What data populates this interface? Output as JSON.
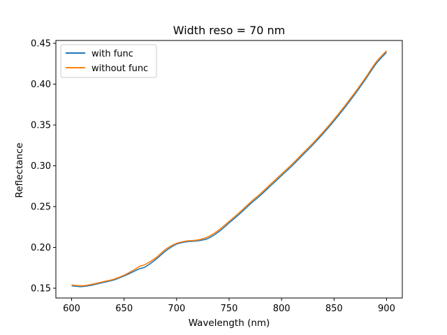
{
  "chart_data": {
    "type": "line",
    "title": "Width reso = 70 nm",
    "xlabel": "Wavelength (nm)",
    "ylabel": "Reflectance",
    "xlim": [
      585,
      915
    ],
    "ylim": [
      0.138,
      0.4535
    ],
    "xticks": [
      600,
      650,
      700,
      750,
      800,
      850,
      900
    ],
    "yticks": [
      0.15,
      0.2,
      0.25,
      0.3,
      0.35,
      0.4,
      0.45
    ],
    "ytick_labels": [
      "0.15",
      "0.20",
      "0.25",
      "0.30",
      "0.35",
      "0.40",
      "0.45"
    ],
    "grid": false,
    "legend_position": "upper-left",
    "series": [
      {
        "name": "with func",
        "color": "#1f77b4",
        "x": [
          600,
          610,
          620,
          630,
          640,
          650,
          660,
          665,
          670,
          680,
          690,
          700,
          710,
          720,
          730,
          740,
          750,
          760,
          770,
          780,
          790,
          800,
          810,
          820,
          830,
          840,
          850,
          860,
          870,
          880,
          890,
          900
        ],
        "y": [
          0.153,
          0.152,
          0.154,
          0.157,
          0.16,
          0.165,
          0.171,
          0.174,
          0.176,
          0.185,
          0.196,
          0.204,
          0.207,
          0.208,
          0.211,
          0.219,
          0.23,
          0.241,
          0.253,
          0.264,
          0.276,
          0.288,
          0.3,
          0.313,
          0.326,
          0.34,
          0.355,
          0.371,
          0.388,
          0.406,
          0.425,
          0.439
        ]
      },
      {
        "name": "without func",
        "color": "#ff7f0e",
        "x": [
          600,
          610,
          620,
          630,
          640,
          650,
          660,
          665,
          670,
          680,
          690,
          700,
          710,
          720,
          730,
          740,
          750,
          760,
          770,
          780,
          790,
          800,
          810,
          820,
          830,
          840,
          850,
          860,
          870,
          880,
          890,
          900
        ],
        "y": [
          0.154,
          0.153,
          0.155,
          0.158,
          0.161,
          0.166,
          0.173,
          0.177,
          0.179,
          0.187,
          0.198,
          0.205,
          0.208,
          0.209,
          0.213,
          0.221,
          0.232,
          0.243,
          0.255,
          0.266,
          0.278,
          0.29,
          0.302,
          0.315,
          0.328,
          0.342,
          0.357,
          0.373,
          0.39,
          0.408,
          0.427,
          0.441
        ]
      }
    ]
  }
}
